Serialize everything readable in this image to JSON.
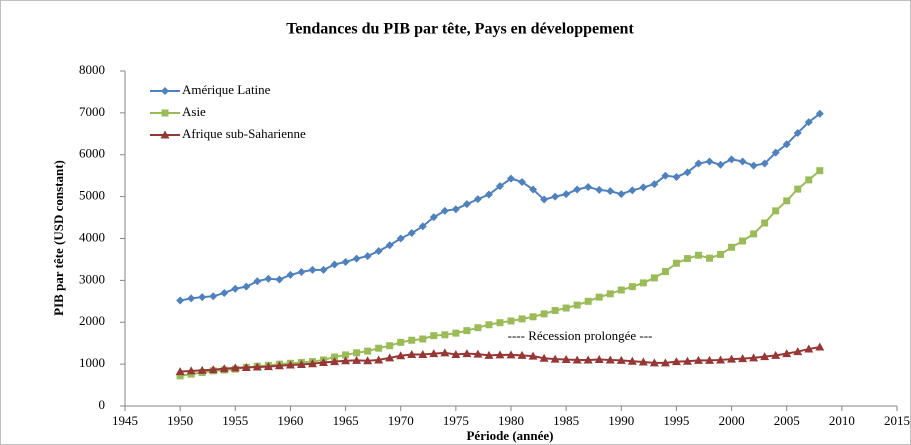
{
  "chart_data": {
    "type": "line",
    "title": "Tendances du PIB par tête, Pays en développement",
    "x_label": "Période (année)",
    "y_label": "PIB par tête (USD constant)",
    "annotation": "---- Récession prolongée ---",
    "x": [
      1950,
      1951,
      1952,
      1953,
      1954,
      1955,
      1956,
      1957,
      1958,
      1959,
      1960,
      1961,
      1962,
      1963,
      1964,
      1965,
      1966,
      1967,
      1968,
      1969,
      1970,
      1971,
      1972,
      1973,
      1974,
      1975,
      1976,
      1977,
      1978,
      1979,
      1980,
      1981,
      1982,
      1983,
      1984,
      1985,
      1986,
      1987,
      1988,
      1989,
      1990,
      1991,
      1992,
      1993,
      1994,
      1995,
      1996,
      1997,
      1998,
      1999,
      2000,
      2001,
      2002,
      2003,
      2004,
      2005,
      2006,
      2007,
      2008
    ],
    "series": [
      {
        "name": "Amérique Latine",
        "color": "#4f81bd",
        "marker": "diamond",
        "values": [
          2520,
          2570,
          2600,
          2620,
          2700,
          2800,
          2850,
          2980,
          3040,
          3020,
          3130,
          3200,
          3250,
          3250,
          3380,
          3440,
          3520,
          3580,
          3700,
          3840,
          4000,
          4130,
          4290,
          4510,
          4660,
          4700,
          4820,
          4940,
          5050,
          5250,
          5430,
          5350,
          5170,
          4930,
          5000,
          5060,
          5170,
          5230,
          5160,
          5130,
          5060,
          5150,
          5220,
          5300,
          5500,
          5470,
          5580,
          5790,
          5840,
          5760,
          5890,
          5840,
          5740,
          5790,
          6050,
          6250,
          6520,
          6780,
          6980
        ]
      },
      {
        "name": "Asie",
        "color": "#9bbb59",
        "marker": "square",
        "values": [
          720,
          760,
          800,
          840,
          860,
          880,
          920,
          950,
          970,
          1000,
          1020,
          1040,
          1060,
          1100,
          1170,
          1220,
          1270,
          1310,
          1380,
          1440,
          1520,
          1570,
          1600,
          1680,
          1700,
          1740,
          1800,
          1870,
          1940,
          1990,
          2030,
          2080,
          2130,
          2200,
          2280,
          2340,
          2410,
          2500,
          2600,
          2680,
          2770,
          2850,
          2940,
          3060,
          3210,
          3410,
          3520,
          3600,
          3530,
          3620,
          3790,
          3940,
          4110,
          4370,
          4660,
          4900,
          5180,
          5400,
          5620
        ]
      },
      {
        "name": "Afrique sub-Saharienne",
        "color": "#953735",
        "marker": "triangle",
        "values": [
          820,
          840,
          850,
          870,
          890,
          910,
          920,
          930,
          940,
          960,
          980,
          990,
          1010,
          1040,
          1060,
          1080,
          1090,
          1080,
          1100,
          1150,
          1200,
          1230,
          1230,
          1250,
          1270,
          1230,
          1250,
          1240,
          1210,
          1220,
          1220,
          1210,
          1190,
          1140,
          1120,
          1110,
          1100,
          1100,
          1110,
          1100,
          1090,
          1070,
          1050,
          1030,
          1030,
          1060,
          1070,
          1090,
          1090,
          1100,
          1120,
          1130,
          1150,
          1180,
          1210,
          1250,
          1300,
          1360,
          1410
        ]
      }
    ],
    "xlim": [
      1945,
      2015
    ],
    "xticks": [
      1945,
      1950,
      1955,
      1960,
      1965,
      1970,
      1975,
      1980,
      1985,
      1990,
      1995,
      2000,
      2005,
      2010,
      2015
    ],
    "ylim": [
      0,
      8000
    ],
    "yticks": [
      0,
      1000,
      2000,
      3000,
      4000,
      5000,
      6000,
      7000,
      8000
    ],
    "grid": false,
    "legend": "upper left"
  }
}
